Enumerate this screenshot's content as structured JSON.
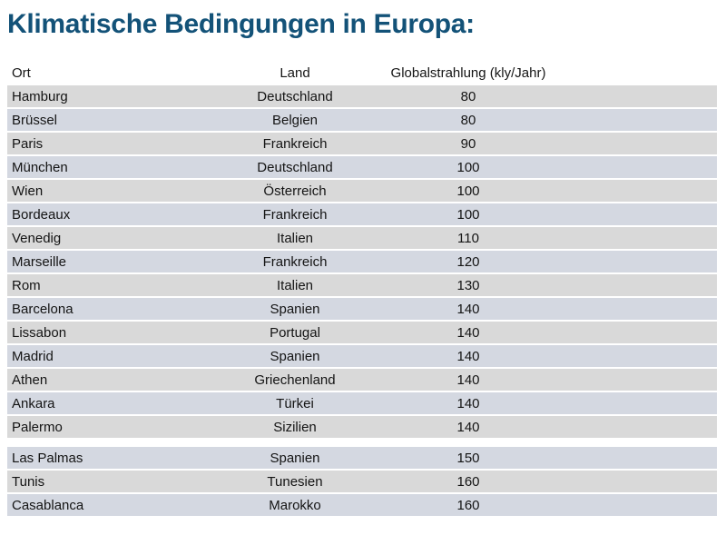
{
  "title": "Klimatische Bedingungen in Europa:",
  "table": {
    "columns": [
      "Ort",
      "Land",
      "Globalstrahlung (kly/Jahr)"
    ],
    "groups": [
      {
        "rows": [
          [
            "Hamburg",
            "Deutschland",
            "80"
          ],
          [
            "Brüssel",
            "Belgien",
            "80"
          ],
          [
            "Paris",
            "Frankreich",
            "90"
          ],
          [
            "München",
            "Deutschland",
            "100"
          ],
          [
            "Wien",
            "Österreich",
            "100"
          ],
          [
            "Bordeaux",
            "Frankreich",
            "100"
          ],
          [
            "Venedig",
            "Italien",
            "110"
          ],
          [
            "Marseille",
            "Frankreich",
            "120"
          ],
          [
            "Rom",
            "Italien",
            "130"
          ],
          [
            "Barcelona",
            "Spanien",
            "140"
          ],
          [
            "Lissabon",
            "Portugal",
            "140"
          ],
          [
            "Madrid",
            "Spanien",
            "140"
          ],
          [
            "Athen",
            "Griechenland",
            "140"
          ],
          [
            "Ankara",
            "Türkei",
            "140"
          ],
          [
            "Palermo",
            "Sizilien",
            "140"
          ]
        ]
      },
      {
        "rows": [
          [
            "Las Palmas",
            "Spanien",
            "150"
          ],
          [
            "Tunis",
            "Tunesien",
            "160"
          ],
          [
            "Casablanca",
            "Marokko",
            "160"
          ]
        ]
      }
    ]
  },
  "colors": {
    "title": "#135278",
    "row_neutral": "#d9d9d9",
    "row_bluegray": "#d4d8e1",
    "text": "#141414",
    "background": "#ffffff"
  }
}
